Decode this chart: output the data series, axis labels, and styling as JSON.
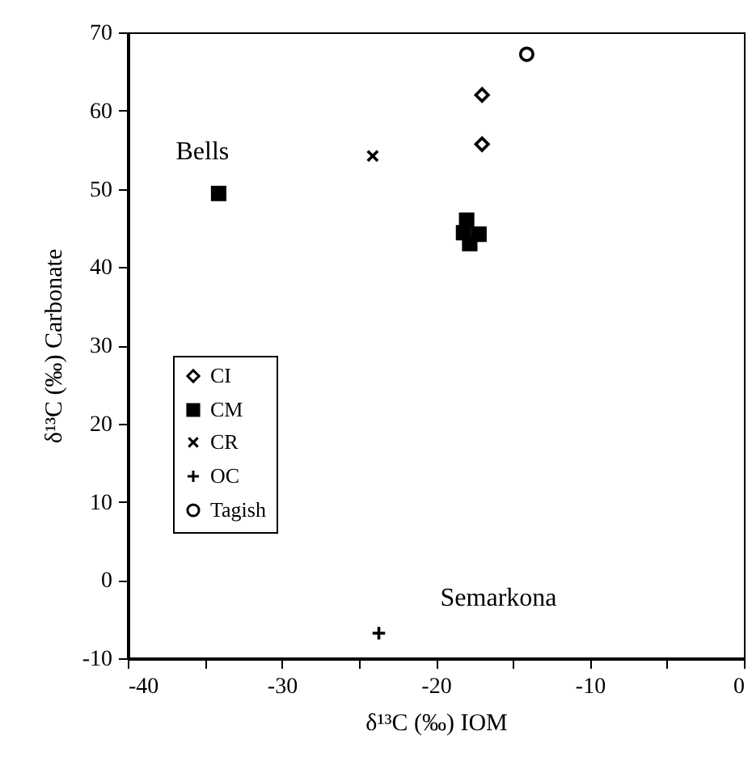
{
  "chart_data": {
    "type": "scatter",
    "xlabel": "δ¹³C (‰) IOM",
    "ylabel": "δ¹³C (‰) Carbonate",
    "xlim": [
      -40,
      0
    ],
    "ylim": [
      -10,
      70
    ],
    "xticks": [
      -40,
      {
        "value": -35,
        "label": null
      },
      -30,
      {
        "value": -25,
        "label": null
      },
      -20,
      {
        "value": -15,
        "label": null
      },
      -10,
      {
        "value": -5,
        "label": null
      },
      0
    ],
    "yticks": [
      -10,
      0,
      10,
      20,
      30,
      40,
      50,
      60,
      70
    ],
    "legend": "left",
    "grid": false,
    "series": [
      {
        "name": "CI",
        "color": "#000000",
        "marker": "diamond",
        "x": [
          -17.0,
          -17.0
        ],
        "values": [
          62.0,
          55.7
        ]
      },
      {
        "name": "CM",
        "color": "#000000",
        "marker": "square",
        "x": [
          -34.1,
          -18.0,
          -18.2,
          -17.2,
          -17.8
        ],
        "values": [
          49.4,
          46.0,
          44.4,
          44.2,
          43.0
        ]
      },
      {
        "name": "CR",
        "color": "#000000",
        "marker": "cross",
        "x": [
          -24.1
        ],
        "values": [
          54.2
        ]
      },
      {
        "name": "OC",
        "color": "#000000",
        "marker": "plus",
        "x": [
          -23.7
        ],
        "values": [
          -6.8
        ]
      },
      {
        "name": "Tagish",
        "color": "#000000",
        "marker": "circle",
        "x": [
          -14.1
        ],
        "values": [
          67.2
        ]
      }
    ],
    "annotations": [
      {
        "text": "Bells",
        "x": -34.1,
        "y": 49.4
      },
      {
        "text": "Semarkona",
        "x": -23.7,
        "y": -6.8
      }
    ]
  }
}
